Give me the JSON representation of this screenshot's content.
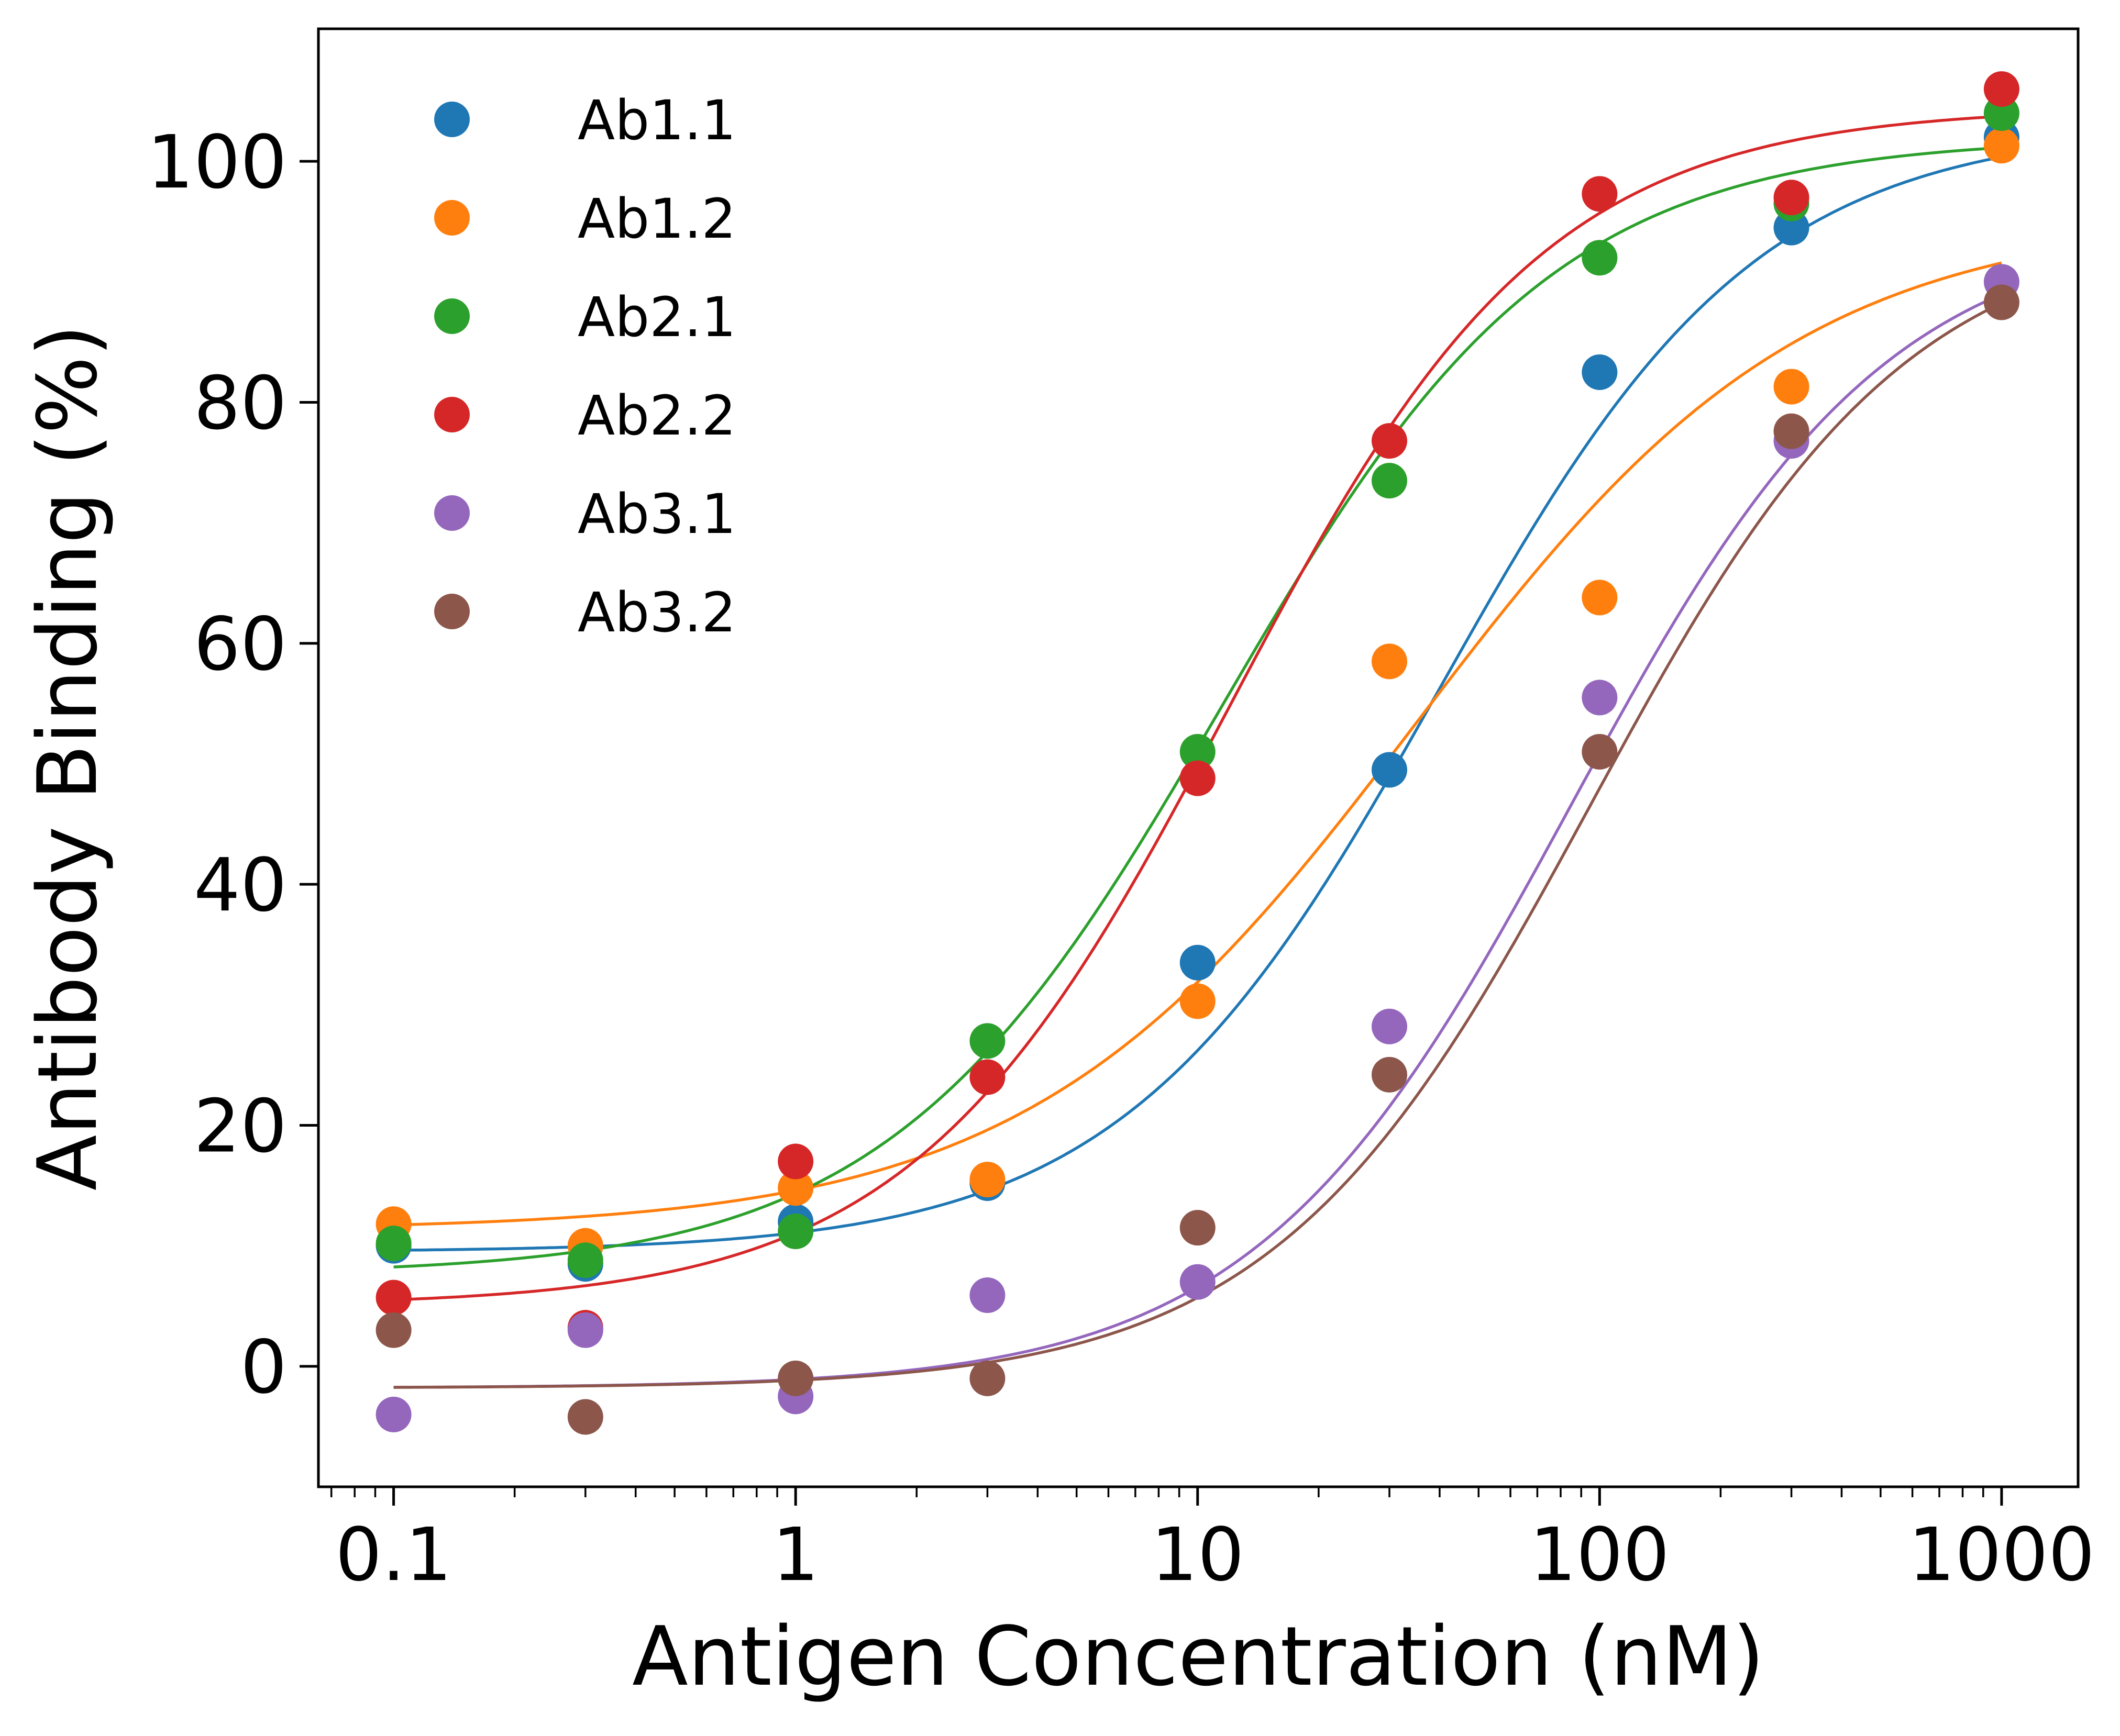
{
  "chart_data": {
    "type": "scatter",
    "title": "",
    "xlabel": "Antigen Concentration (nM)",
    "ylabel": "Antibody Binding (%)",
    "xscale": "log",
    "xlim": [
      0.065,
      1550
    ],
    "ylim": [
      -10,
      111
    ],
    "xticks": [
      0.1,
      1,
      10,
      100,
      1000
    ],
    "xtick_labels": [
      "0.1",
      "1",
      "10",
      "100",
      "1000"
    ],
    "yticks": [
      0,
      20,
      40,
      60,
      80,
      100
    ],
    "ytick_labels": [
      "0",
      "20",
      "40",
      "60",
      "80",
      "100"
    ],
    "grid": false,
    "legend_position": "top-left",
    "x": [
      0.1,
      0.3,
      1,
      3,
      10,
      30,
      100,
      300,
      1000
    ],
    "series": [
      {
        "name": "Ab1.1",
        "color": "#1f77b4",
        "values": [
          10.0,
          8.5,
          12.0,
          15.2,
          33.5,
          49.5,
          82.5,
          94.5,
          102.0
        ],
        "fit": {
          "bottom": 9.5,
          "top": 103.0,
          "ec50": 40.0,
          "hill": 1.1
        }
      },
      {
        "name": "Ab1.2",
        "color": "#ff7f0e",
        "values": [
          11.8,
          10.0,
          14.8,
          15.5,
          30.3,
          58.5,
          63.8,
          81.3,
          101.3
        ],
        "fit": {
          "bottom": 11.3,
          "top": 95.5,
          "ec50": 35.0,
          "hill": 0.9
        }
      },
      {
        "name": "Ab2.1",
        "color": "#2ca02c",
        "values": [
          10.2,
          8.8,
          11.2,
          27.0,
          51.0,
          73.5,
          92.0,
          96.5,
          104.0
        ],
        "fit": {
          "bottom": 7.6,
          "top": 102.0,
          "ec50": 11.5,
          "hill": 1.05
        }
      },
      {
        "name": "Ab2.2",
        "color": "#d62728",
        "values": [
          5.7,
          3.2,
          17.0,
          24.0,
          48.8,
          76.8,
          97.3,
          97.0,
          106.0
        ],
        "fit": {
          "bottom": 5.0,
          "top": 104.5,
          "ec50": 12.0,
          "hill": 1.1
        }
      },
      {
        "name": "Ab3.1",
        "color": "#9467bd",
        "values": [
          -4.0,
          3.0,
          -2.5,
          5.9,
          7.0,
          28.2,
          55.5,
          76.8,
          90.0
        ],
        "fit": {
          "bottom": -1.8,
          "top": 95.0,
          "ec50": 85.0,
          "hill": 1.1
        }
      },
      {
        "name": "Ab3.2",
        "color": "#8c564b",
        "values": [
          3.0,
          -4.2,
          -1.0,
          -1.0,
          11.5,
          24.2,
          51.0,
          77.6,
          88.3
        ],
        "fit": {
          "bottom": -1.8,
          "top": 95.0,
          "ec50": 95.0,
          "hill": 1.1
        }
      }
    ]
  }
}
